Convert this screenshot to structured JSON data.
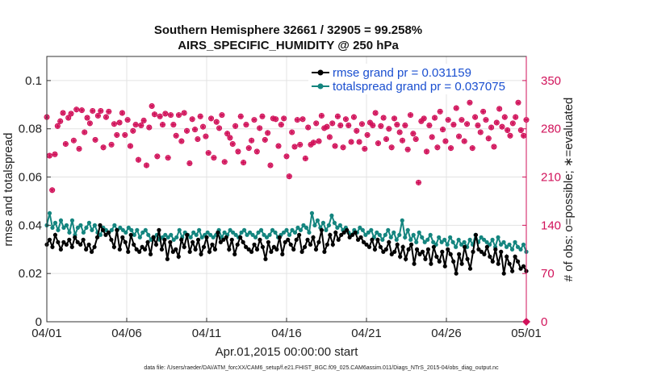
{
  "chart_data": {
    "type": "line",
    "title": "Southern Hemisphere 32661 / 32905 = 99.258%",
    "subtitle": "AIRS_SPECIFIC_HUMIDITY @ 250 hPa",
    "xlabel": "Apr.01,2015 00:00:00 start",
    "ylabel": "rmse and totalspread",
    "ylabel_right": "# of obs: o=possible; ∗=evaluated",
    "footnote": "data file: /Users/raeder/DAI/ATM_forcXX/CAM6_setup/f.e21.FHIST_BGC.f09_025.CAM6assim.011/Diags_NTrS_2015-04/obs_diag_output.nc",
    "xlim": [
      0,
      30
    ],
    "ylim": [
      0,
      0.11
    ],
    "ylim_right": [
      0,
      385
    ],
    "x_ticks": [
      0,
      5,
      10,
      15,
      20,
      25,
      30
    ],
    "x_tick_labels": [
      "04/01",
      "04/06",
      "04/11",
      "04/16",
      "04/21",
      "04/26",
      "05/01"
    ],
    "y_ticks": [
      0,
      0.02,
      0.04,
      0.06,
      0.08,
      0.1
    ],
    "y_tick_labels": [
      "0",
      "0.02",
      "0.04",
      "0.06",
      "0.08",
      "0.1"
    ],
    "y_ticks_right": [
      0,
      70,
      140,
      210,
      280,
      350
    ],
    "y_tick_labels_right": [
      "0",
      "70",
      "140",
      "210",
      "280",
      "350"
    ],
    "grid": true,
    "legend": "top-right",
    "colors": {
      "rmse": "#000000",
      "spread": "#14857f",
      "obs": "#d1125a",
      "legend_text": "#1a4fd0"
    },
    "series": [
      {
        "name": "rmse grand pr = 0.031159",
        "values": [
          0.032,
          0.034,
          0.031,
          0.036,
          0.033,
          0.03,
          0.033,
          0.032,
          0.034,
          0.031,
          0.035,
          0.033,
          0.032,
          0.034,
          0.03,
          0.032,
          0.029,
          0.031,
          0.035,
          0.04,
          0.038,
          0.036,
          0.037,
          0.034,
          0.031,
          0.038,
          0.03,
          0.035,
          0.033,
          0.029,
          0.036,
          0.032,
          0.03,
          0.029,
          0.031,
          0.03,
          0.033,
          0.028,
          0.035,
          0.032,
          0.038,
          0.03,
          0.034,
          0.026,
          0.033,
          0.029,
          0.03,
          0.027,
          0.034,
          0.031,
          0.036,
          0.029,
          0.033,
          0.03,
          0.034,
          0.028,
          0.031,
          0.035,
          0.029,
          0.032,
          0.03,
          0.037,
          0.033,
          0.034,
          0.035,
          0.03,
          0.034,
          0.028,
          0.032,
          0.035,
          0.033,
          0.031,
          0.03,
          0.029,
          0.032,
          0.03,
          0.034,
          0.031,
          0.026,
          0.033,
          0.029,
          0.031,
          0.03,
          0.035,
          0.028,
          0.033,
          0.034,
          0.032,
          0.03,
          0.034,
          0.036,
          0.029,
          0.031,
          0.034,
          0.032,
          0.035,
          0.03,
          0.033,
          0.038,
          0.029,
          0.032,
          0.036,
          0.032,
          0.037,
          0.034,
          0.036,
          0.037,
          0.038,
          0.035,
          0.036,
          0.037,
          0.034,
          0.035,
          0.033,
          0.032,
          0.031,
          0.034,
          0.03,
          0.034,
          0.031,
          0.029,
          0.03,
          0.033,
          0.028,
          0.029,
          0.032,
          0.027,
          0.031,
          0.026,
          0.03,
          0.032,
          0.024,
          0.03,
          0.028,
          0.029,
          0.026,
          0.03,
          0.024,
          0.031,
          0.027,
          0.025,
          0.029,
          0.023,
          0.03,
          0.028,
          0.025,
          0.02,
          0.028,
          0.024,
          0.031,
          0.026,
          0.022,
          0.029,
          0.036,
          0.03,
          0.029,
          0.028,
          0.031,
          0.027,
          0.025,
          0.03,
          0.024,
          0.029,
          0.02,
          0.027,
          0.024,
          0.021,
          0.027,
          0.025,
          0.022,
          0.023,
          0.021
        ]
      },
      {
        "name": "totalspread grand pr = 0.037075",
        "values": [
          0.04,
          0.045,
          0.039,
          0.041,
          0.038,
          0.042,
          0.039,
          0.04,
          0.037,
          0.042,
          0.036,
          0.039,
          0.04,
          0.037,
          0.039,
          0.041,
          0.038,
          0.04,
          0.037,
          0.036,
          0.039,
          0.038,
          0.037,
          0.038,
          0.04,
          0.038,
          0.039,
          0.038,
          0.037,
          0.039,
          0.038,
          0.036,
          0.038,
          0.035,
          0.037,
          0.038,
          0.036,
          0.034,
          0.035,
          0.036,
          0.034,
          0.035,
          0.036,
          0.035,
          0.036,
          0.034,
          0.035,
          0.038,
          0.035,
          0.037,
          0.036,
          0.035,
          0.037,
          0.036,
          0.038,
          0.035,
          0.036,
          0.037,
          0.036,
          0.035,
          0.036,
          0.038,
          0.035,
          0.037,
          0.036,
          0.038,
          0.037,
          0.036,
          0.035,
          0.037,
          0.038,
          0.036,
          0.037,
          0.036,
          0.035,
          0.037,
          0.038,
          0.036,
          0.035,
          0.036,
          0.038,
          0.037,
          0.035,
          0.036,
          0.037,
          0.038,
          0.036,
          0.038,
          0.037,
          0.039,
          0.038,
          0.04,
          0.039,
          0.037,
          0.045,
          0.04,
          0.042,
          0.039,
          0.041,
          0.038,
          0.04,
          0.044,
          0.041,
          0.039,
          0.04,
          0.038,
          0.039,
          0.037,
          0.036,
          0.038,
          0.037,
          0.039,
          0.038,
          0.036,
          0.037,
          0.038,
          0.035,
          0.037,
          0.036,
          0.034,
          0.036,
          0.038,
          0.035,
          0.037,
          0.034,
          0.036,
          0.042,
          0.035,
          0.038,
          0.034,
          0.036,
          0.033,
          0.037,
          0.035,
          0.033,
          0.034,
          0.036,
          0.033,
          0.032,
          0.035,
          0.033,
          0.034,
          0.032,
          0.035,
          0.033,
          0.031,
          0.034,
          0.032,
          0.033,
          0.031,
          0.034,
          0.032,
          0.036,
          0.033,
          0.035,
          0.034,
          0.033,
          0.032,
          0.034,
          0.031,
          0.035,
          0.032,
          0.033,
          0.031,
          0.032,
          0.03,
          0.033,
          0.031,
          0.03,
          0.032,
          0.029
        ]
      }
    ],
    "obs_possible": [
      297,
      241,
      191,
      243,
      284,
      291,
      303,
      258,
      296,
      302,
      263,
      308,
      251,
      307,
      275,
      296,
      288,
      306,
      264,
      299,
      306,
      253,
      297,
      305,
      257,
      287,
      271,
      289,
      303,
      271,
      293,
      255,
      277,
      286,
      235,
      285,
      292,
      227,
      282,
      313,
      301,
      240,
      298,
      286,
      302,
      238,
      300,
      286,
      270,
      300,
      262,
      303,
      277,
      230,
      294,
      279,
      265,
      298,
      283,
      269,
      245,
      295,
      238,
      290,
      281,
      300,
      232,
      273,
      267,
      258,
      284,
      247,
      298,
      231,
      286,
      252,
      263,
      293,
      247,
      281,
      298,
      264,
      274,
      227,
      295,
      294,
      255,
      286,
      295,
      240,
      211,
      275,
      254,
      293,
      257,
      294,
      237,
      282,
      257,
      260,
      288,
      262,
      299,
      281,
      283,
      268,
      288,
      255,
      298,
      285,
      253,
      294,
      285,
      261,
      297,
      277,
      261,
      287,
      251,
      271,
      289,
      285,
      303,
      259,
      284,
      296,
      265,
      280,
      253,
      295,
      286,
      275,
      263,
      285,
      250,
      300,
      273,
      265,
      202,
      291,
      295,
      247,
      285,
      268,
      296,
      253,
      305,
      279,
      262,
      293,
      252,
      286,
      310,
      269,
      293,
      262,
      287,
      318,
      252,
      297,
      285,
      275,
      305,
      293,
      266,
      282,
      254,
      289,
      309,
      283,
      297,
      278,
      270,
      288,
      297,
      318,
      278,
      270,
      293
    ]
  }
}
